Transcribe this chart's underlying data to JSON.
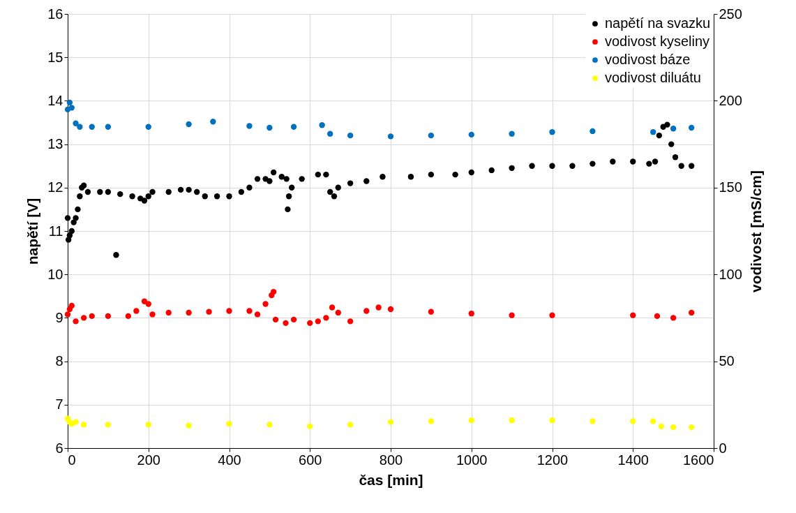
{
  "chart_data": {
    "type": "scatter",
    "xlabel": "čas [min]",
    "ylabel": "napětí [V]",
    "y2label": "vodivost [mS/cm]",
    "xlim": [
      0,
      1600
    ],
    "xticks": [
      0,
      200,
      400,
      600,
      800,
      1000,
      1200,
      1400,
      1600
    ],
    "ylim": [
      6,
      16
    ],
    "yticks": [
      6,
      7,
      8,
      9,
      10,
      11,
      12,
      13,
      14,
      15,
      16
    ],
    "y2lim": [
      0,
      250
    ],
    "y2ticks": [
      0,
      50,
      100,
      150,
      200,
      250
    ],
    "grid": true,
    "legend": "top right",
    "marker": "circle",
    "series": [
      {
        "name": "napětí na svazku",
        "color": "#000000",
        "x": [
          0,
          2,
          5,
          10,
          15,
          20,
          25,
          30,
          35,
          40,
          50,
          80,
          100,
          120,
          130,
          160,
          180,
          190,
          200,
          210,
          250,
          280,
          300,
          320,
          340,
          370,
          400,
          430,
          450,
          470,
          490,
          500,
          510,
          530,
          542,
          545,
          548,
          555,
          580,
          620,
          640,
          650,
          660,
          670,
          700,
          740,
          780,
          850,
          900,
          960,
          1000,
          1050,
          1100,
          1150,
          1200,
          1250,
          1300,
          1350,
          1400,
          1440,
          1455,
          1465,
          1475,
          1485,
          1495,
          1505,
          1520,
          1545
        ],
        "values": [
          11.3,
          10.8,
          10.9,
          11.0,
          11.2,
          11.3,
          11.5,
          11.8,
          12.0,
          12.05,
          11.9,
          11.9,
          11.9,
          10.45,
          11.85,
          11.8,
          11.75,
          11.7,
          11.8,
          11.9,
          11.9,
          11.95,
          11.95,
          11.9,
          11.8,
          11.8,
          11.8,
          11.9,
          12.0,
          12.2,
          12.2,
          12.15,
          12.35,
          12.25,
          12.2,
          11.5,
          11.8,
          12.0,
          12.2,
          12.3,
          12.3,
          11.9,
          11.8,
          12.0,
          12.1,
          12.15,
          12.25,
          12.25,
          12.3,
          12.3,
          12.35,
          12.4,
          12.45,
          12.5,
          12.5,
          12.5,
          12.55,
          12.6,
          12.6,
          12.55,
          12.6,
          13.2,
          13.4,
          13.45,
          13.0,
          12.7,
          12.5,
          12.5
        ]
      },
      {
        "name": "vodivost kyseliny",
        "color": "#ff0000",
        "axis": "y2",
        "x": [
          0,
          5,
          10,
          20,
          40,
          60,
          100,
          150,
          170,
          190,
          200,
          210,
          250,
          300,
          350,
          400,
          450,
          470,
          490,
          505,
          510,
          515,
          540,
          560,
          600,
          620,
          640,
          655,
          670,
          700,
          740,
          770,
          800,
          900,
          1000,
          1100,
          1200,
          1400,
          1460,
          1500,
          1545
        ],
        "values": [
          77,
          80,
          82,
          73,
          75,
          76,
          76,
          76,
          79,
          84.5,
          83,
          77,
          78,
          78,
          78.5,
          79,
          79,
          77,
          83,
          88,
          90,
          74,
          72,
          74,
          72,
          73,
          75,
          81,
          78,
          73,
          79,
          81,
          80,
          78.5,
          77.5,
          76.5,
          76.5,
          76.5,
          76,
          75,
          78
        ]
      },
      {
        "name": "vodivost báze",
        "color": "#0070c0",
        "axis": "y2",
        "x": [
          0,
          5,
          10,
          20,
          30,
          60,
          100,
          200,
          300,
          360,
          450,
          500,
          560,
          630,
          650,
          700,
          800,
          900,
          1000,
          1100,
          1200,
          1300,
          1450,
          1500,
          1545
        ],
        "values": [
          195,
          199,
          196,
          187,
          185,
          185,
          185,
          185,
          186.5,
          188,
          185.5,
          184.5,
          185,
          186,
          181,
          180,
          179.5,
          180,
          180.5,
          181,
          182,
          182.5,
          182,
          184,
          184.5
        ]
      },
      {
        "name": "vodivost diluátu",
        "color": "#ffff00",
        "axis": "y2",
        "x": [
          0,
          5,
          10,
          20,
          40,
          100,
          200,
          300,
          400,
          500,
          600,
          700,
          800,
          900,
          1000,
          1100,
          1200,
          1300,
          1400,
          1450,
          1470,
          1500,
          1545
        ],
        "values": [
          17,
          15,
          14,
          15,
          13.5,
          13.5,
          13.5,
          13,
          14,
          13.5,
          12.5,
          13.5,
          15,
          15.5,
          16,
          16,
          16,
          15.5,
          15.5,
          15.5,
          12.5,
          12,
          12
        ]
      }
    ]
  }
}
